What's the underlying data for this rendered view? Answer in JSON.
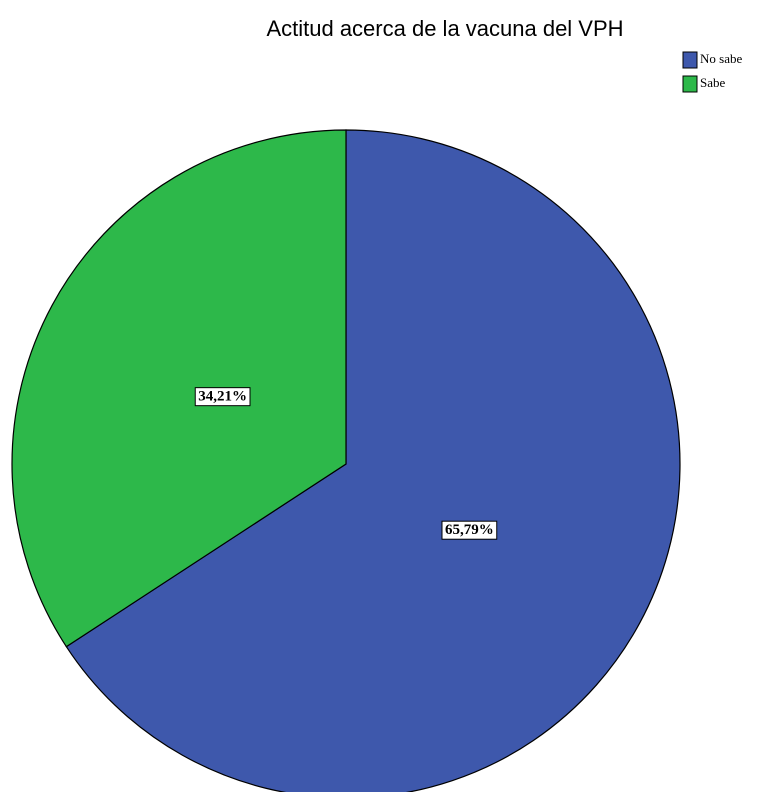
{
  "chart_data": {
    "type": "pie",
    "title": "Actitud acerca de la vacuna del VPH",
    "categories": [
      "No sabe",
      "Sabe"
    ],
    "values": [
      65.79,
      34.21
    ],
    "value_labels": [
      "65,79%",
      "34,21%"
    ],
    "colors": [
      "#3e58ac",
      "#2db84a"
    ]
  }
}
